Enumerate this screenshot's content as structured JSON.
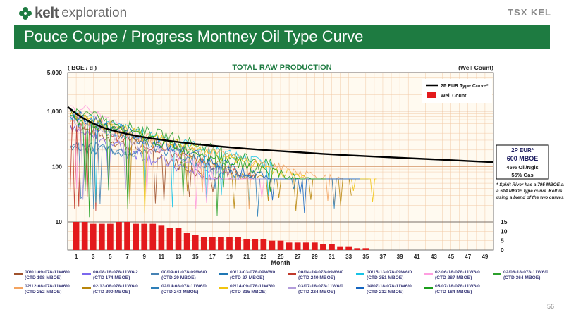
{
  "header": {
    "logo_word": "kelt",
    "logo_suffix": "exploration",
    "exchange_badge": "TSX KEL",
    "title": "Pouce Coupe / Progress Montney Oil Type Curve",
    "page_number": "56",
    "logo_icon": "clover-icon",
    "brand_color": "#1e7b41"
  },
  "chart_data": {
    "type": "line",
    "title": "TOTAL RAW PRODUCTION",
    "ylabel_left": "( BOE / d )",
    "ylabel_right": "(Well Count)",
    "xlabel": "Month",
    "y_scale": "log",
    "ylim": [
      10,
      5000
    ],
    "y_ticks": [
      "10",
      "100",
      "1,000",
      "5,000"
    ],
    "y2_ticks": [
      "0",
      "5",
      "10",
      "15"
    ],
    "y2lim": [
      0,
      15
    ],
    "xlim": [
      0,
      50
    ],
    "x_ticks": [
      "1",
      "3",
      "5",
      "7",
      "9",
      "11",
      "13",
      "15",
      "17",
      "19",
      "21",
      "23",
      "25",
      "27",
      "29",
      "31",
      "33",
      "35",
      "37",
      "39",
      "41",
      "43",
      "45",
      "47",
      "49"
    ],
    "grid": true,
    "legend_inset": [
      {
        "label": "2P EUR Type Curve*",
        "color": "#000000",
        "kind": "line"
      },
      {
        "label": "Well Count",
        "color": "#e31a1c",
        "kind": "bar"
      }
    ],
    "type_curve": {
      "x": [
        0,
        1,
        2,
        3,
        4,
        5,
        6,
        8,
        10,
        12,
        15,
        18,
        21,
        24,
        27,
        30,
        33,
        36,
        40,
        44,
        48,
        50
      ],
      "y": [
        1200,
        900,
        720,
        600,
        520,
        460,
        420,
        360,
        320,
        290,
        255,
        230,
        210,
        195,
        182,
        170,
        160,
        152,
        142,
        133,
        124,
        120
      ]
    },
    "well_count": {
      "x": [
        1,
        2,
        3,
        4,
        5,
        6,
        7,
        8,
        9,
        10,
        11,
        12,
        13,
        14,
        15,
        16,
        17,
        18,
        19,
        20,
        21,
        22,
        23,
        24,
        25,
        26,
        27,
        28,
        29,
        30,
        31,
        32,
        33,
        34,
        35
      ],
      "values": [
        15,
        15,
        14,
        14,
        14,
        15,
        15,
        14,
        14,
        14,
        13,
        12,
        12,
        9,
        8,
        7,
        7,
        7,
        7,
        7,
        6,
        6,
        6,
        5,
        5,
        4,
        4,
        4,
        4,
        3,
        3,
        2,
        2,
        1,
        1
      ]
    },
    "annotation_box": {
      "lines": [
        "2P EUR*",
        "600 MBOE",
        "45% Oil/Ngls",
        "55% Gas"
      ]
    },
    "footnote": "* Spirit River has a 795 MBOE and a 514 MBOE type curve. Kelt is using a blend of the two curves.",
    "series": [
      {
        "name": "00/01-09-078-11W6/0",
        "note": "(CTD 198 MBOE)",
        "color": "#a0522d"
      },
      {
        "name": "00/08-18-078-11W6/2",
        "note": "(CTD 174 MBOE)",
        "color": "#7b68ee"
      },
      {
        "name": "00/09-01-078-09W6/0",
        "note": "(CTD 29 MBOE)",
        "color": "#4682b4"
      },
      {
        "name": "00/13-03-078-09W6/0",
        "note": "(CTD 27 MBOE)",
        "color": "#1f77b4"
      },
      {
        "name": "00/14-14-078-09W6/0",
        "note": "(CTD 240 MBOE)",
        "color": "#c0392b"
      },
      {
        "name": "00/15-13-078-09W6/0",
        "note": "(CTD 351 MBOE)",
        "color": "#17c3e6"
      },
      {
        "name": "02/06-18-078-11W6/0",
        "note": "(CTD 287 MBOE)",
        "color": "#ff9ee0"
      },
      {
        "name": "02/08-18-078-11W6/0",
        "note": "(CTD 364 MBOE)",
        "color": "#2ca02c"
      },
      {
        "name": "02/12-08-078-11W6/0",
        "note": "(CTD 252 MBOE)",
        "color": "#f4a460"
      },
      {
        "name": "02/13-08-078-11W6/0",
        "note": "(CTD 290 MBOE)",
        "color": "#b8860b"
      },
      {
        "name": "02/14-08-078-11W6/0",
        "note": "(CTD 243 MBOE)",
        "color": "#2e7fb8"
      },
      {
        "name": "02/14-09-078-11W6/0",
        "note": "(CTD 315 MBOE)",
        "color": "#f1c40f"
      },
      {
        "name": "03/07-18-078-11W6/0",
        "note": "(CTD 224 MBOE)",
        "color": "#b39ddb"
      },
      {
        "name": "04/07-18-078-11W6/0",
        "note": "(CTD 212 MBOE)",
        "color": "#1565c0"
      },
      {
        "name": "05/07-18-078-11W6/0",
        "note": "(CTD 184 MBOE)",
        "color": "#1b9e1b"
      }
    ],
    "series_tracks": [
      {
        "start": 600,
        "decay": 0.032,
        "len": 20,
        "noise": 0.25
      },
      {
        "start": 480,
        "decay": 0.03,
        "len": 18,
        "noise": 0.28
      },
      {
        "start": 260,
        "decay": 0.01,
        "len": 9,
        "noise": 0.2
      },
      {
        "start": 250,
        "decay": 0.012,
        "len": 8,
        "noise": 0.22
      },
      {
        "start": 700,
        "decay": 0.028,
        "len": 22,
        "noise": 0.22
      },
      {
        "start": 900,
        "decay": 0.022,
        "len": 24,
        "noise": 0.2
      },
      {
        "start": 1600,
        "decay": 0.045,
        "len": 26,
        "noise": 0.2
      },
      {
        "start": 1100,
        "decay": 0.024,
        "len": 24,
        "noise": 0.22
      },
      {
        "start": 700,
        "decay": 0.02,
        "len": 32,
        "noise": 0.2
      },
      {
        "start": 900,
        "decay": 0.03,
        "len": 33,
        "noise": 0.25
      },
      {
        "start": 800,
        "decay": 0.03,
        "len": 35,
        "noise": 0.25
      },
      {
        "start": 900,
        "decay": 0.024,
        "len": 36,
        "noise": 0.2
      },
      {
        "start": 700,
        "decay": 0.03,
        "len": 34,
        "noise": 0.22
      },
      {
        "start": 1000,
        "decay": 0.03,
        "len": 34,
        "noise": 0.25
      },
      {
        "start": 800,
        "decay": 0.024,
        "len": 30,
        "noise": 0.22
      }
    ]
  }
}
